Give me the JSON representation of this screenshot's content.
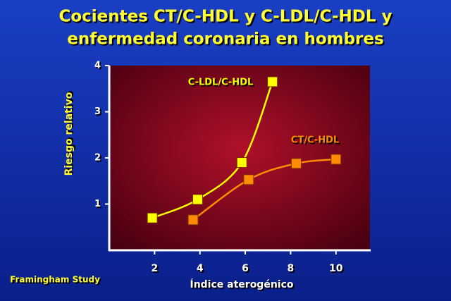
{
  "chart_data": {
    "type": "line",
    "title": [
      "Cocientes CT/C-HDL y C-LDL/C-HDL y",
      "enfermedad coronaria en hombres"
    ],
    "x_label": "Índice aterogénico",
    "y_label": "Riesgo relativo",
    "note": "Framingham Study",
    "xlim": [
      0,
      11.5
    ],
    "xticks": [
      2,
      4,
      6,
      8,
      10
    ],
    "ylim": [
      0,
      4
    ],
    "yticks": [
      1,
      2,
      3,
      4
    ],
    "series": [
      {
        "name": "C-LDL/C-HDL",
        "color": "#ffff00",
        "x": [
          1.9,
          3.9,
          5.85,
          7.2
        ],
        "values": [
          0.7,
          1.1,
          1.9,
          3.65
        ]
      },
      {
        "name": "CT/C-HDL",
        "color": "#ff8c00",
        "x": [
          3.7,
          6.15,
          8.25,
          10.0
        ],
        "values": [
          0.66,
          1.53,
          1.88,
          1.97
        ]
      }
    ]
  }
}
